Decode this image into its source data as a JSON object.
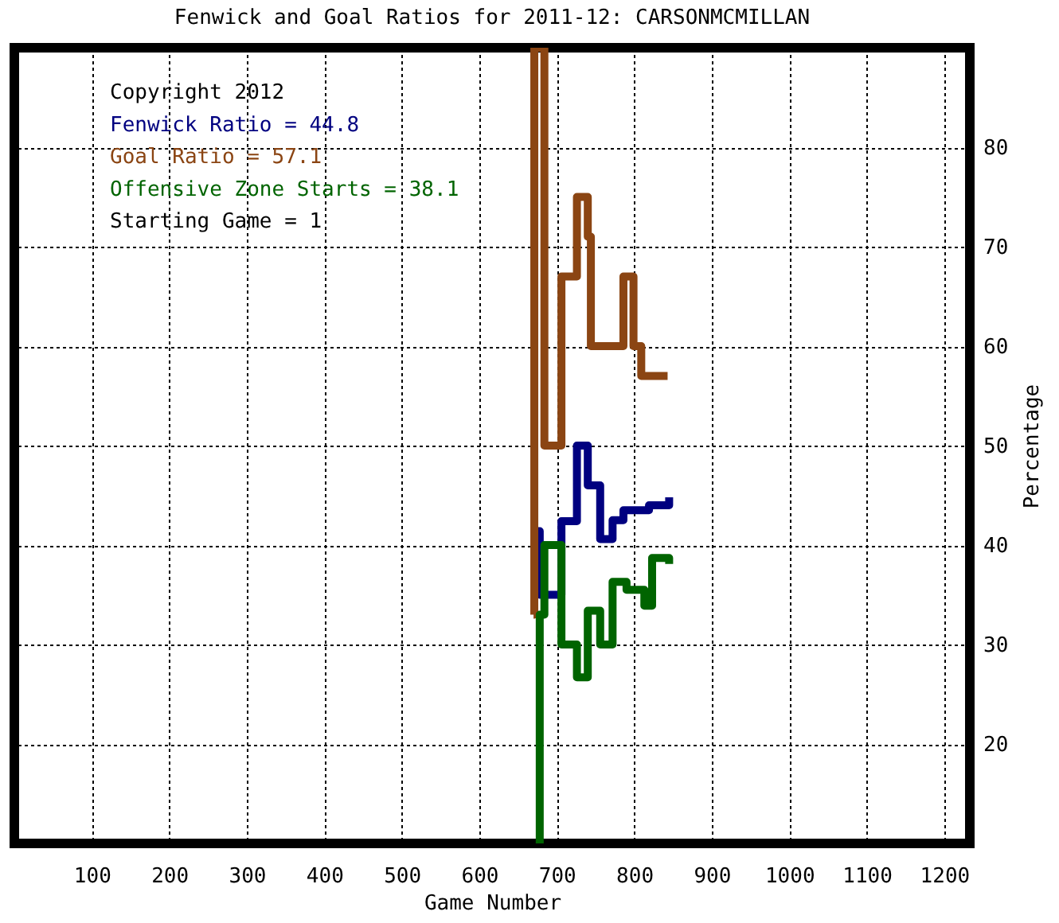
{
  "chart_data": {
    "type": "step",
    "title": "Fenwick and Goal Ratios for 2011-12: CARSONMCMILLAN",
    "xlabel": "Game Number",
    "ylabel": "Percentage",
    "xlim": [
      0,
      1233
    ],
    "xticks": [
      100,
      200,
      300,
      400,
      500,
      600,
      700,
      800,
      900,
      1000,
      1100,
      1200
    ],
    "ylim": [
      10,
      90
    ],
    "yticks": [
      20,
      30,
      40,
      50,
      60,
      70,
      80
    ],
    "grid": true,
    "legend": false,
    "marker": "none",
    "line_style": "solid",
    "annotations": [
      "Copyright 2012",
      "Starting Game = 1"
    ],
    "series": [
      {
        "name": "Fenwick Ratio = 44.8",
        "color": "#000080",
        "x": [
          676,
          678,
          706,
          726,
          740,
          756,
          772,
          786,
          819,
          845
        ],
        "values": [
          41.4,
          35,
          42.4,
          50,
          46,
          40.6,
          42.5,
          43.5,
          44,
          44.8
        ]
      },
      {
        "name": "Goal Ratio = 57.1",
        "color": "#8b4513",
        "x": [
          670,
          671,
          684,
          706,
          726,
          740,
          744,
          786,
          799,
          809,
          843
        ],
        "values": [
          33,
          90,
          50,
          67,
          75,
          71,
          60,
          67,
          60,
          57,
          57
        ]
      },
      {
        "name": "Offensive Zone Starts = 38.1",
        "color": "#006400",
        "x": [
          676,
          678,
          684,
          706,
          726,
          740,
          756,
          772,
          790,
          813,
          823,
          845
        ],
        "values": [
          10,
          33,
          40,
          30,
          26.7,
          33.4,
          30,
          36.3,
          35.5,
          33.9,
          38.7,
          38.1
        ]
      }
    ]
  }
}
